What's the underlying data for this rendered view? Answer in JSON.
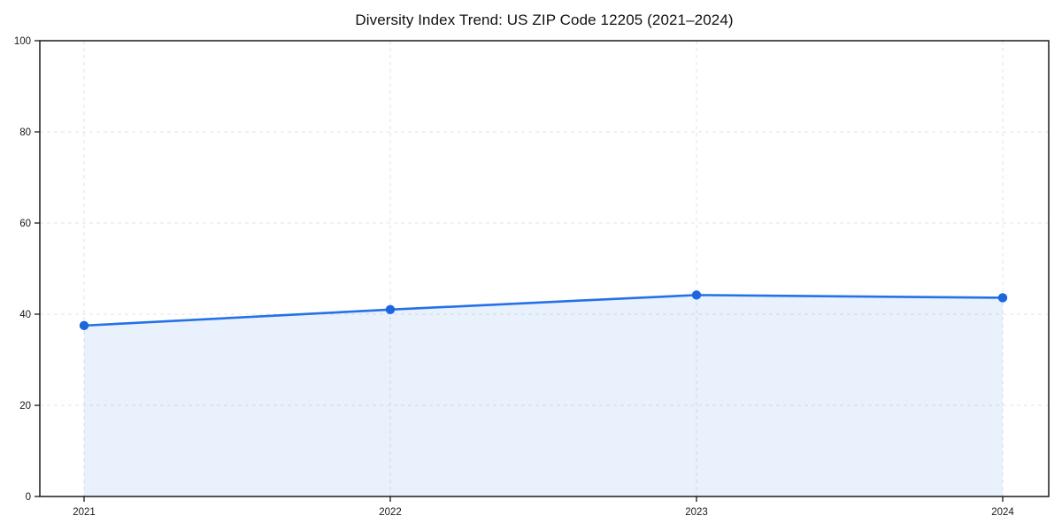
{
  "chart_data": {
    "type": "line",
    "title": "Diversity Index Trend: US ZIP Code 12205 (2021–2024)",
    "categories": [
      "2021",
      "2022",
      "2023",
      "2024"
    ],
    "series": [
      {
        "name": "Diversity Index",
        "values": [
          37.5,
          41.0,
          44.2,
          43.6
        ]
      }
    ],
    "xlabel": "",
    "ylabel": "",
    "ylim": [
      0,
      100
    ],
    "yticks": [
      0,
      20,
      40,
      60,
      80,
      100
    ],
    "grid": "dashed, horizontal and vertical",
    "legend": "none",
    "area_fill": true,
    "marker": "circle",
    "colors": {
      "line": "#2471e8",
      "marker": "#1e66dd",
      "area_fill": "rgba(36, 113, 232, 0.10)",
      "grid": "#e3e3e3",
      "spine": "#1a1a1a",
      "tick_text": "#1a1a1a",
      "title_text": "#111111",
      "background": "#ffffff"
    }
  }
}
